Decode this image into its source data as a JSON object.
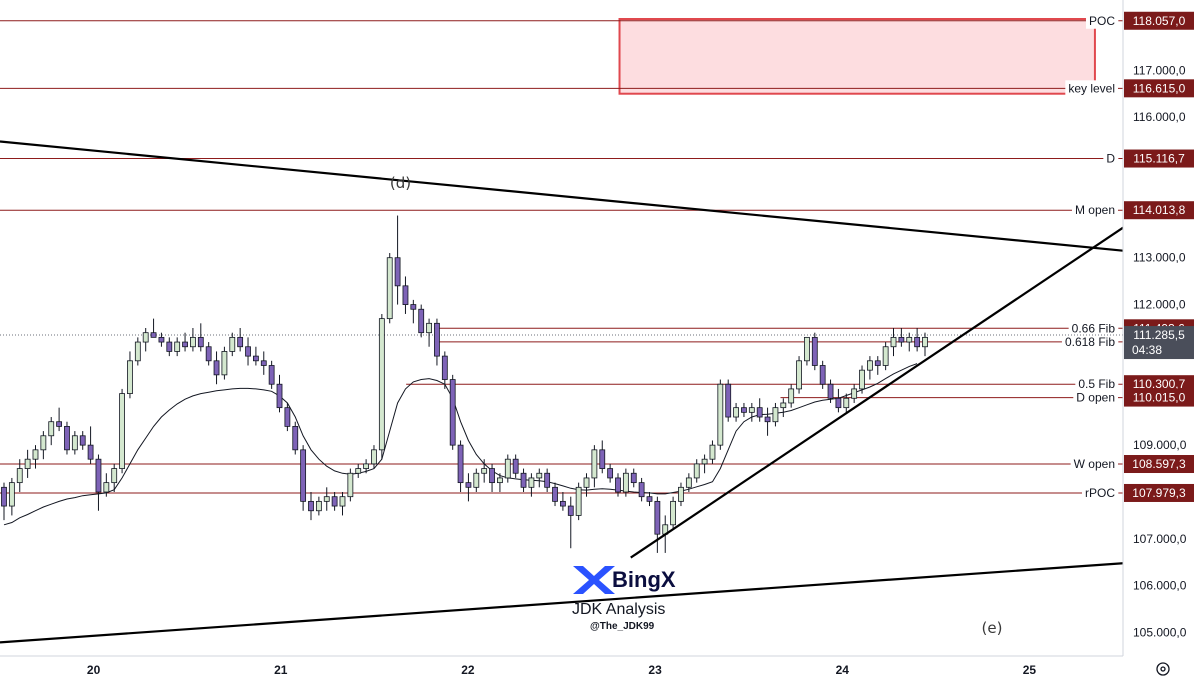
{
  "chart_data": {
    "type": "candlestick",
    "y_axis": {
      "range": [
        104500,
        118500
      ],
      "ticks": [
        {
          "value": 105000,
          "label": "105.000,0"
        },
        {
          "value": 106000,
          "label": "106.000,0"
        },
        {
          "value": 107000,
          "label": "107.000,0"
        },
        {
          "value": 109000,
          "label": "109.000,0"
        },
        {
          "value": 112000,
          "label": "112.000,0"
        },
        {
          "value": 113000,
          "label": "113.000,0"
        },
        {
          "value": 116000,
          "label": "116.000,0"
        },
        {
          "value": 117000,
          "label": "117.000,0"
        }
      ]
    },
    "x_axis": {
      "range": [
        19.5,
        25.5
      ],
      "ticks": [
        {
          "value": 20,
          "label": "20"
        },
        {
          "value": 21,
          "label": "21"
        },
        {
          "value": 22,
          "label": "22"
        },
        {
          "value": 23,
          "label": "23"
        },
        {
          "value": 24,
          "label": "24"
        },
        {
          "value": 25,
          "label": "25"
        }
      ]
    },
    "levels": [
      {
        "label": "POC",
        "price": 118057,
        "badge": "118.057,0",
        "x_start": 19.5
      },
      {
        "label": "key level",
        "price": 116615,
        "badge": "116.615,0",
        "x_start": 19.5
      },
      {
        "label": "D",
        "price": 115116.7,
        "badge": "115.116,7",
        "x_start": 19.5
      },
      {
        "label": "M open",
        "price": 114013.8,
        "badge": "114.013,8",
        "x_start": 19.5
      },
      {
        "label": "0.66 Fib",
        "price": 111493.6,
        "badge": "111.493,6",
        "x_start": 21.82
      },
      {
        "label": "0.618 Fib",
        "price": 111203.4,
        "badge": "111.203,4",
        "x_start": 21.82
      },
      {
        "label": "0.5 Fib",
        "price": 110300.7,
        "badge": "110.300,7",
        "x_start": 21.67
      },
      {
        "label": "D open",
        "price": 110015,
        "badge": "110.015,0",
        "x_start": 23.67
      },
      {
        "label": "W open",
        "price": 108597.3,
        "badge": "108.597,3",
        "x_start": 19.5
      },
      {
        "label": "rPOC",
        "price": 107979.3,
        "badge": "107.979,3",
        "x_start": 19.5
      }
    ],
    "current_price": {
      "price": 111285.5,
      "badge": "111.285,5",
      "countdown": "04:38"
    },
    "zone": {
      "x_start": 22.81,
      "x_end": 25.35,
      "top": 118500,
      "bottom": 116500
    },
    "trendlines": [
      {
        "name": "upper-triangle",
        "from": [
          19.5,
          115480
        ],
        "to": [
          25.5,
          113150
        ]
      },
      {
        "name": "lower-triangle",
        "from": [
          19.5,
          104790
        ],
        "to": [
          25.5,
          106480
        ]
      },
      {
        "name": "support-rising",
        "from": [
          22.87,
          106600
        ],
        "to": [
          25.5,
          113640
        ]
      }
    ],
    "annotations": [
      {
        "text": "(d)",
        "x": 21.64,
        "y": 114490
      },
      {
        "text": "(e)",
        "x": 24.8,
        "y": 104990
      }
    ],
    "ohlc": [
      [
        108100,
        108200,
        107400,
        107700
      ],
      [
        107700,
        108300,
        107500,
        108200
      ],
      [
        108200,
        108700,
        108000,
        108500
      ],
      [
        108500,
        108900,
        108300,
        108700
      ],
      [
        108700,
        109000,
        108500,
        108900
      ],
      [
        108900,
        109300,
        108700,
        109200
      ],
      [
        109200,
        109600,
        109000,
        109500
      ],
      [
        109500,
        109800,
        109300,
        109400
      ],
      [
        109400,
        109500,
        108800,
        108900
      ],
      [
        108900,
        109300,
        108800,
        109200
      ],
      [
        109200,
        109300,
        108900,
        109000
      ],
      [
        109000,
        109400,
        108600,
        108700
      ],
      [
        108700,
        108800,
        107600,
        108000
      ],
      [
        108000,
        108400,
        107900,
        108200
      ],
      [
        108200,
        108600,
        108000,
        108500
      ],
      [
        108500,
        110200,
        108400,
        110100
      ],
      [
        110100,
        111000,
        110000,
        110800
      ],
      [
        110800,
        111300,
        110700,
        111200
      ],
      [
        111200,
        111500,
        111000,
        111400
      ],
      [
        111400,
        111700,
        111300,
        111300
      ],
      [
        111300,
        111400,
        111100,
        111200
      ],
      [
        111200,
        111300,
        110900,
        111000
      ],
      [
        111000,
        111300,
        110900,
        111200
      ],
      [
        111200,
        111400,
        111000,
        111100
      ],
      [
        111100,
        111500,
        111000,
        111300
      ],
      [
        111300,
        111600,
        111000,
        111100
      ],
      [
        111100,
        111200,
        110700,
        110800
      ],
      [
        110800,
        111000,
        110300,
        110500
      ],
      [
        110500,
        111100,
        110400,
        111000
      ],
      [
        111000,
        111400,
        110900,
        111300
      ],
      [
        111300,
        111500,
        111000,
        111100
      ],
      [
        111100,
        111300,
        110700,
        110900
      ],
      [
        110900,
        111100,
        110700,
        110800
      ],
      [
        110800,
        111000,
        110500,
        110700
      ],
      [
        110700,
        110800,
        110200,
        110300
      ],
      [
        110300,
        110500,
        109700,
        109800
      ],
      [
        109800,
        109900,
        109300,
        109400
      ],
      [
        109400,
        109500,
        108800,
        108900
      ],
      [
        108900,
        109000,
        107600,
        107800
      ],
      [
        107800,
        108000,
        107400,
        107600
      ],
      [
        107600,
        107900,
        107500,
        107800
      ],
      [
        107800,
        108100,
        107600,
        107900
      ],
      [
        107900,
        108000,
        107600,
        107700
      ],
      [
        107700,
        108000,
        107500,
        107900
      ],
      [
        107900,
        108500,
        107800,
        108400
      ],
      [
        108400,
        108600,
        108300,
        108500
      ],
      [
        108500,
        108700,
        108400,
        108600
      ],
      [
        108600,
        109000,
        108500,
        108900
      ],
      [
        108900,
        111800,
        108700,
        111700
      ],
      [
        111700,
        113100,
        111600,
        113000
      ],
      [
        113000,
        113900,
        112000,
        112400
      ],
      [
        112400,
        112600,
        111800,
        112000
      ],
      [
        112000,
        112100,
        111600,
        111900
      ],
      [
        111900,
        112000,
        111300,
        111400
      ],
      [
        111400,
        111700,
        111100,
        111600
      ],
      [
        111600,
        111700,
        110700,
        110900
      ],
      [
        110900,
        111000,
        110200,
        110400
      ],
      [
        110400,
        110500,
        108900,
        109000
      ],
      [
        109000,
        109100,
        108000,
        108200
      ],
      [
        108200,
        108400,
        107800,
        108100
      ],
      [
        108100,
        108500,
        108000,
        108400
      ],
      [
        108400,
        108700,
        108200,
        108500
      ],
      [
        108500,
        108600,
        108000,
        108200
      ],
      [
        108200,
        108400,
        108000,
        108300
      ],
      [
        108300,
        108800,
        108200,
        108700
      ],
      [
        108700,
        108800,
        108300,
        108400
      ],
      [
        108400,
        108500,
        108000,
        108100
      ],
      [
        108100,
        108400,
        107900,
        108300
      ],
      [
        108300,
        108500,
        108100,
        108400
      ],
      [
        108400,
        108500,
        108000,
        108100
      ],
      [
        108100,
        108200,
        107700,
        107800
      ],
      [
        107800,
        108000,
        107600,
        107700
      ],
      [
        107700,
        107900,
        106800,
        107500
      ],
      [
        107500,
        108200,
        107400,
        108100
      ],
      [
        108100,
        108400,
        107900,
        108300
      ],
      [
        108300,
        109000,
        108100,
        108900
      ],
      [
        108900,
        109100,
        108400,
        108500
      ],
      [
        108500,
        108600,
        108200,
        108300
      ],
      [
        108300,
        108400,
        107900,
        108000
      ],
      [
        108000,
        108500,
        107900,
        108400
      ],
      [
        108400,
        108500,
        108100,
        108200
      ],
      [
        108200,
        108300,
        107800,
        107900
      ],
      [
        107900,
        108000,
        107700,
        107800
      ],
      [
        107800,
        107900,
        106700,
        107100
      ],
      [
        107100,
        107500,
        106700,
        107300
      ],
      [
        107300,
        107900,
        107200,
        107800
      ],
      [
        107800,
        108200,
        107700,
        108100
      ],
      [
        108100,
        108400,
        108000,
        108300
      ],
      [
        108300,
        108700,
        108200,
        108600
      ],
      [
        108600,
        108800,
        108400,
        108700
      ],
      [
        108700,
        109100,
        108600,
        109000
      ],
      [
        109000,
        110400,
        108900,
        110300
      ],
      [
        110300,
        110400,
        109500,
        109600
      ],
      [
        109600,
        109900,
        109500,
        109800
      ],
      [
        109800,
        109900,
        109600,
        109700
      ],
      [
        109700,
        109900,
        109500,
        109800
      ],
      [
        109800,
        110000,
        109500,
        109600
      ],
      [
        109600,
        109800,
        109200,
        109500
      ],
      [
        109500,
        109900,
        109400,
        109800
      ],
      [
        109800,
        110000,
        109600,
        109900
      ],
      [
        109900,
        110300,
        109800,
        110200
      ],
      [
        110200,
        110900,
        110100,
        110800
      ],
      [
        110800,
        111300,
        110700,
        111300
      ],
      [
        111300,
        111400,
        110600,
        110700
      ],
      [
        110700,
        110800,
        110200,
        110300
      ],
      [
        110300,
        110400,
        109900,
        110000
      ],
      [
        110000,
        110200,
        109700,
        109800
      ],
      [
        109800,
        110100,
        109700,
        110000
      ],
      [
        110000,
        110300,
        109900,
        110200
      ],
      [
        110200,
        110700,
        110100,
        110600
      ],
      [
        110600,
        110900,
        110400,
        110800
      ],
      [
        110800,
        110900,
        110500,
        110700
      ],
      [
        110700,
        111200,
        110600,
        111100
      ],
      [
        111100,
        111500,
        110900,
        111300
      ],
      [
        111300,
        111500,
        111100,
        111200
      ],
      [
        111200,
        111400,
        111000,
        111300
      ],
      [
        111300,
        111500,
        111000,
        111100
      ],
      [
        111100,
        111400,
        110900,
        111300
      ]
    ],
    "ma": [
      107300,
      107350,
      107450,
      107520,
      107600,
      107680,
      107740,
      107800,
      107850,
      107880,
      107920,
      107940,
      107960,
      107980,
      108050,
      108300,
      108600,
      108900,
      109150,
      109400,
      109600,
      109750,
      109880,
      109980,
      110050,
      110100,
      110130,
      110160,
      110180,
      110200,
      110210,
      110210,
      110200,
      110180,
      110150,
      110050,
      109900,
      109600,
      109200,
      108900,
      108700,
      108550,
      108450,
      108400,
      108380,
      108400,
      108440,
      108500,
      108700,
      109300,
      109900,
      110200,
      110350,
      110400,
      110420,
      110380,
      110300,
      110000,
      109500,
      109100,
      108800,
      108600,
      108450,
      108350,
      108300,
      108280,
      108260,
      108250,
      108240,
      108220,
      108180,
      108130,
      108080,
      108050,
      108040,
      108060,
      108070,
      108060,
      108040,
      108020,
      108000,
      107990,
      107980,
      107960,
      107960,
      107990,
      108020,
      108060,
      108110,
      108160,
      108220,
      108500,
      108900,
      109300,
      109500,
      109600,
      109650,
      109660,
      109680,
      109700,
      109740,
      109800,
      109860,
      109920,
      109960,
      109980,
      110000,
      110060,
      110120,
      110180,
      110240,
      110320,
      110420,
      110520,
      110600,
      110680,
      110740
    ]
  },
  "branding": {
    "brand": "BingX",
    "author": "JDK Analysis",
    "handle": "@The_JDK99"
  },
  "colors": {
    "up": "#d4e8cf",
    "down": "#7e63b7",
    "wick": "#131722",
    "level_line": "#8e1b1b",
    "badge": "#7b1a1a",
    "zone_fill": "#fddde0",
    "zone_border": "#e0484e",
    "price_badge": "#4a4e5a",
    "ma": "#131722"
  },
  "settings_icon": "gear-icon"
}
